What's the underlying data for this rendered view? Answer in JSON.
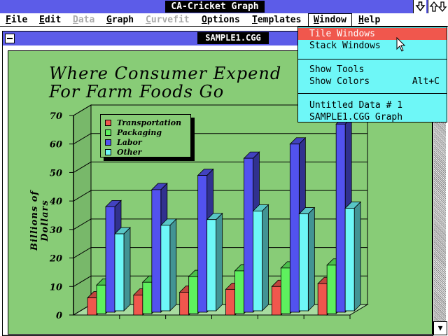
{
  "app": {
    "title": "CA-Cricket Graph"
  },
  "menubar": [
    {
      "label": "File",
      "disabled": false
    },
    {
      "label": "Edit",
      "disabled": false
    },
    {
      "label": "Data",
      "disabled": true
    },
    {
      "label": "Graph",
      "disabled": false
    },
    {
      "label": "Curvefit",
      "disabled": true
    },
    {
      "label": "Options",
      "disabled": false
    },
    {
      "label": "Templates",
      "disabled": false
    },
    {
      "label": "Window",
      "disabled": false
    },
    {
      "label": "Help",
      "disabled": false
    }
  ],
  "document": {
    "title": "SAMPLE1.CGG"
  },
  "window_menu": {
    "items": [
      {
        "label": "Tile  Windows",
        "highlighted": true
      },
      {
        "label": "Stack Windows"
      },
      {
        "label": "Show Tools"
      },
      {
        "label": "Show Colors",
        "shortcut": "Alt+C"
      },
      {
        "label": "Untitled Data # 1"
      },
      {
        "label": "SAMPLE1.CGG Graph"
      }
    ]
  },
  "chart_data": {
    "type": "bar",
    "title_line1": "Where Consumer Expend",
    "title_line2": "For Farm Foods Go",
    "ylabel": "Billions of Dollars",
    "ylim": [
      0,
      70
    ],
    "yticks": [
      0,
      10,
      20,
      30,
      40,
      50,
      60,
      70
    ],
    "categories_count": 6,
    "series": [
      {
        "name": "Transportation",
        "color": "#f0574d",
        "values": [
          6,
          7,
          8,
          9,
          10,
          11
        ]
      },
      {
        "name": "Packaging",
        "color": "#5ef05e",
        "values": [
          10,
          11,
          13,
          15,
          16,
          17
        ]
      },
      {
        "name": "Labor",
        "color": "#5252ef",
        "values": [
          37,
          43,
          48,
          54,
          59,
          66
        ]
      },
      {
        "name": "Other",
        "color": "#6ef7f7",
        "values": [
          27,
          30,
          32,
          35,
          34,
          36
        ]
      }
    ]
  },
  "colors": {
    "titlebar": "#5c5ce8",
    "graph_bg": "#88cc77",
    "menu_bg": "#6ef7f7",
    "highlight": "#f0574d"
  }
}
